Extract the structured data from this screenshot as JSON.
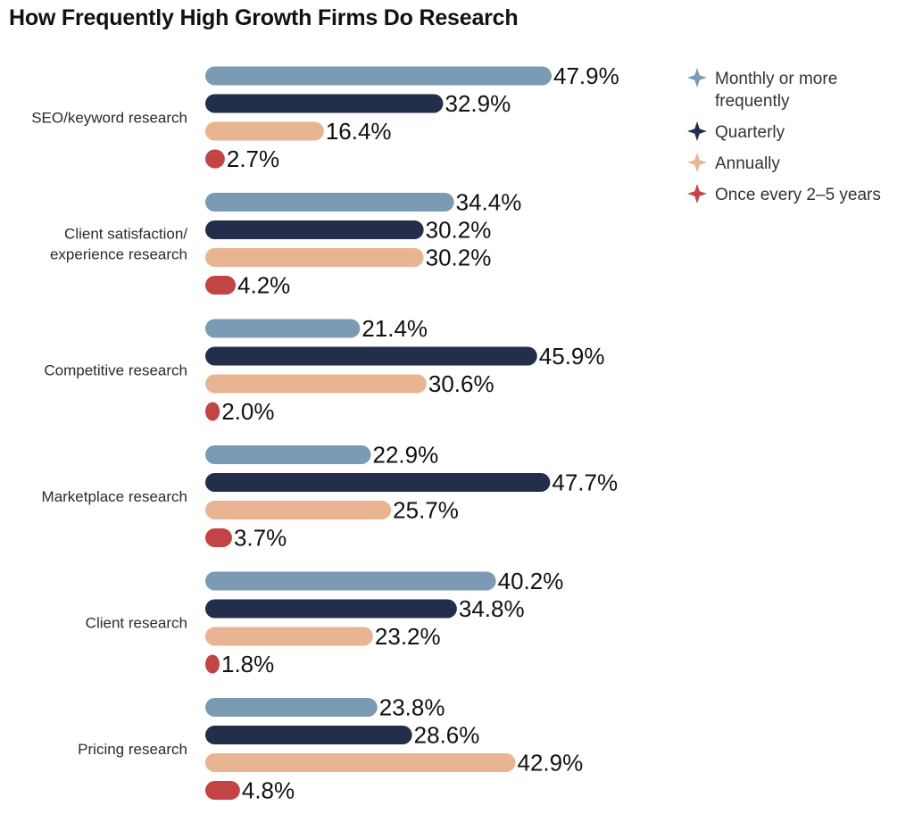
{
  "chart_data": {
    "type": "bar",
    "orientation": "horizontal",
    "title": "How Frequently High Growth Firms Do Research",
    "categories": [
      "SEO/keyword research",
      "Client satisfaction/ experience research",
      "Competitive research",
      "Marketplace research",
      "Client research",
      "Pricing research"
    ],
    "series": [
      {
        "name": "Monthly or more frequently",
        "color": "#7b9ab4",
        "values": [
          47.9,
          34.4,
          21.4,
          22.9,
          40.2,
          23.8
        ],
        "labels": [
          "47.9%",
          "34.4%",
          "21.4%",
          "22.9%",
          "40.2%",
          "23.8%"
        ]
      },
      {
        "name": "Quarterly",
        "color": "#222e4a",
        "values": [
          32.9,
          30.2,
          45.9,
          47.7,
          34.8,
          28.6
        ],
        "labels": [
          "32.9%",
          "30.2%",
          "45.9%",
          "47.7%",
          "34.8%",
          "28.6%"
        ]
      },
      {
        "name": "Annually",
        "color": "#e9b491",
        "values": [
          16.4,
          30.2,
          30.6,
          25.7,
          23.2,
          42.9
        ],
        "labels": [
          "16.4%",
          "30.2%",
          "30.6%",
          "25.7%",
          "23.2%",
          "42.9%"
        ]
      },
      {
        "name": "Once every 2–5 years",
        "color": "#c24444",
        "values": [
          2.7,
          4.2,
          2.0,
          3.7,
          1.8,
          4.8
        ],
        "labels": [
          "2.7%",
          "4.2%",
          "2.0%",
          "3.7%",
          "1.8%",
          "4.8%"
        ]
      }
    ],
    "value_format": "percent",
    "xlim": [
      0,
      50
    ],
    "grid": false,
    "legend_position": "top-right",
    "legend_icon": "diamond-star-icon"
  }
}
